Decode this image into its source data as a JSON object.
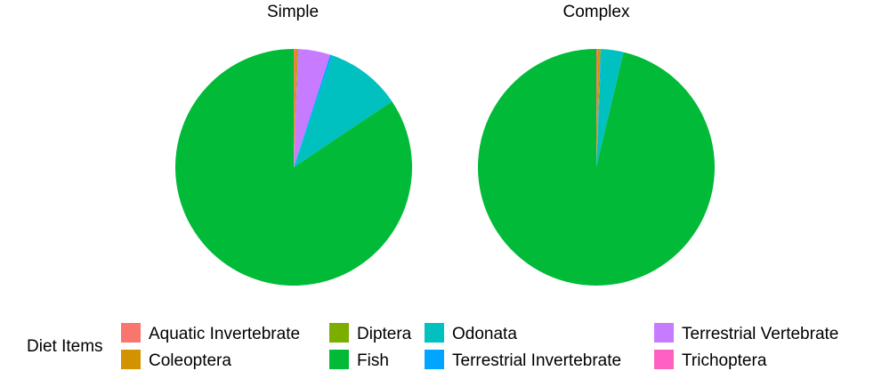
{
  "chart_data": {
    "type": "pie",
    "legend": {
      "title": "Diet Items",
      "placement": "bottom",
      "items": [
        {
          "name": "Aquatic Invertebrate",
          "color": "#F8766D"
        },
        {
          "name": "Coleoptera",
          "color": "#D39200"
        },
        {
          "name": "Diptera",
          "color": "#7CAE00"
        },
        {
          "name": "Fish",
          "color": "#00BA38"
        },
        {
          "name": "Odonata",
          "color": "#00C1C0"
        },
        {
          "name": "Terrestrial Invertebrate",
          "color": "#00A5FF"
        },
        {
          "name": "Terrestrial Vertebrate",
          "color": "#C77CFF"
        },
        {
          "name": "Trichoptera",
          "color": "#FF61C3"
        }
      ]
    },
    "panels": [
      {
        "title": "Simple",
        "slices": [
          {
            "name": "Aquatic Invertebrate",
            "value": 0.2
          },
          {
            "name": "Coleoptera",
            "value": 0.3
          },
          {
            "name": "Diptera",
            "value": 0.1
          },
          {
            "name": "Terrestrial Vertebrate",
            "value": 4.4
          },
          {
            "name": "Terrestrial Invertebrate",
            "value": 0.3
          },
          {
            "name": "Odonata",
            "value": 10.3
          },
          {
            "name": "Fish",
            "value": 84.4
          }
        ]
      },
      {
        "title": "Complex",
        "slices": [
          {
            "name": "Aquatic Invertebrate",
            "value": 0.2
          },
          {
            "name": "Coleoptera",
            "value": 0.3
          },
          {
            "name": "Diptera",
            "value": 0.1
          },
          {
            "name": "Terrestrial Vertebrate",
            "value": 0.0
          },
          {
            "name": "Terrestrial Invertebrate",
            "value": 0.1
          },
          {
            "name": "Odonata",
            "value": 3.0
          },
          {
            "name": "Fish",
            "value": 96.3
          }
        ]
      }
    ]
  }
}
